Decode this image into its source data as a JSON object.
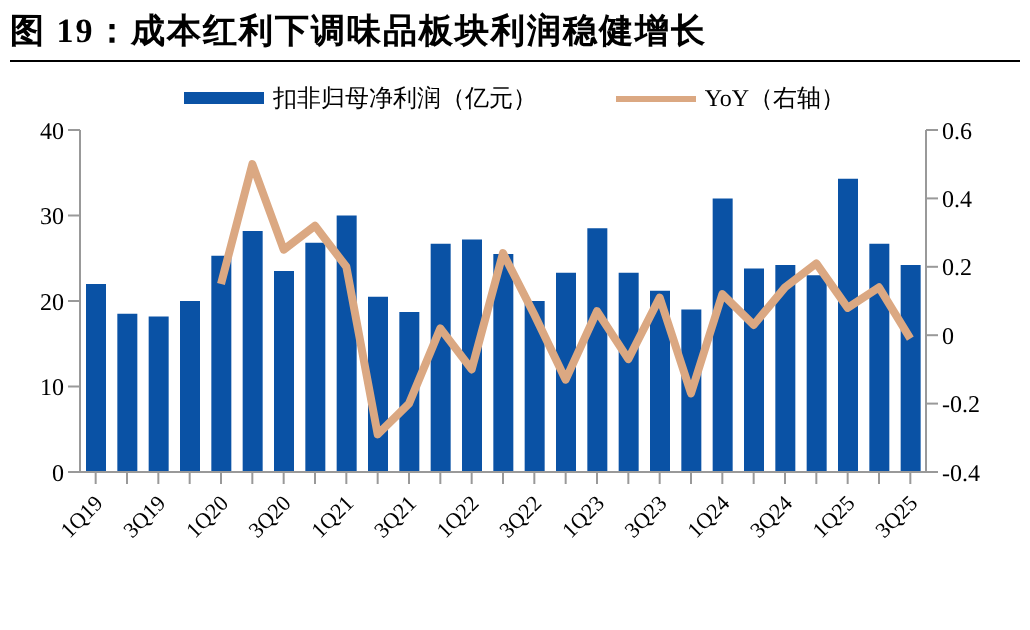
{
  "chart_data": {
    "type": "bar",
    "title": "图 19：成本红利下调味品板块利润稳健增长",
    "categories": [
      "1Q19",
      null,
      "3Q19",
      null,
      "1Q20",
      null,
      "3Q20",
      null,
      "1Q21",
      null,
      "3Q21",
      null,
      "1Q22",
      null,
      "3Q22",
      null,
      "1Q23",
      null,
      "3Q23",
      null,
      "1Q24",
      null,
      "3Q24",
      null,
      "1Q25",
      null,
      "3Q25"
    ],
    "series": [
      {
        "name": "扣非归母净利润（亿元）",
        "color": "#0a52a5",
        "values": [
          22,
          18.5,
          18.2,
          20,
          25.3,
          28.2,
          23.5,
          26.8,
          30,
          20.5,
          18.7,
          26.7,
          27.2,
          25.5,
          20,
          23.3,
          28.5,
          23.3,
          21.2,
          19,
          32,
          23.8,
          24.2,
          23,
          34.3,
          26.7,
          24.2
        ]
      },
      {
        "name": "YoY（右轴）",
        "type": "line",
        "axis": "y2",
        "color": "#dba882",
        "values": [
          null,
          null,
          null,
          null,
          0.15,
          0.5,
          0.25,
          0.32,
          0.2,
          -0.29,
          -0.2,
          0.02,
          -0.1,
          0.24,
          0.06,
          -0.13,
          0.07,
          -0.07,
          0.11,
          -0.17,
          0.12,
          0.03,
          0.14,
          0.21,
          0.08,
          0.14,
          -0.01
        ]
      }
    ],
    "ylim": [
      0,
      40
    ],
    "yticks": [
      0,
      10,
      20,
      30,
      40
    ],
    "y2lim": [
      -0.4,
      0.6
    ],
    "y2ticks": [
      -0.4,
      -0.2,
      0,
      0.2,
      0.4,
      0.6
    ],
    "legend": "top",
    "grid": false,
    "marker": "none",
    "line_style": "solid"
  }
}
